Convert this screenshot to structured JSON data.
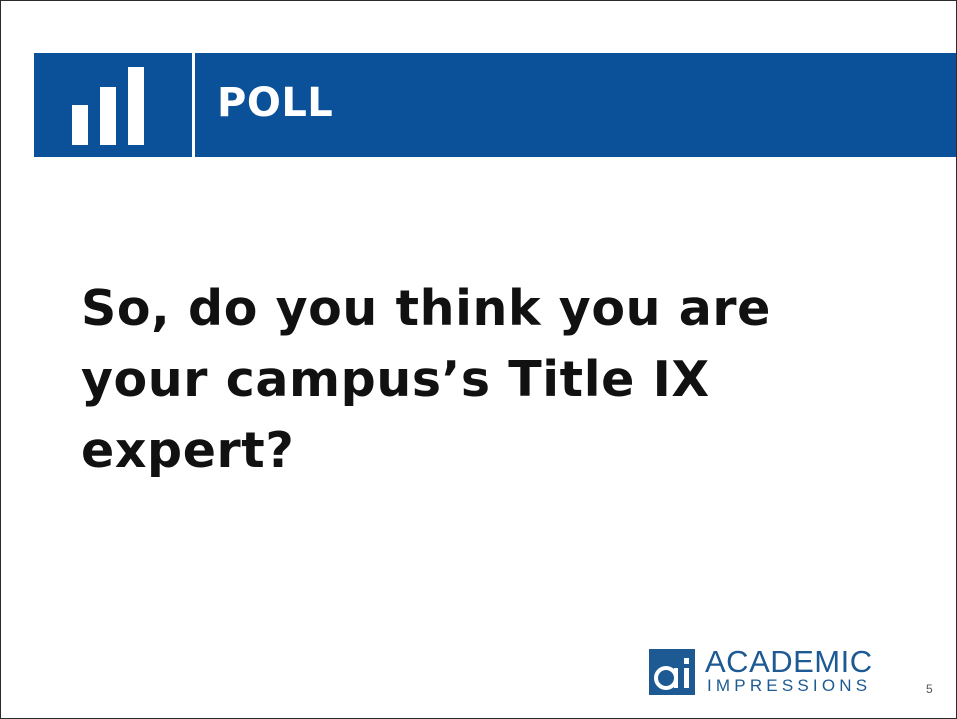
{
  "header": {
    "title": "POLL",
    "icon": "bar-chart-icon",
    "accent_color": "#0a5199"
  },
  "question": {
    "lines": [
      "So, do you think you are",
      "your campus’s Title IX",
      "expert?"
    ]
  },
  "logo": {
    "mark_letters": "ai",
    "name": "ACADEMIC",
    "subtitle": "IMPRESSIONS",
    "color": "#1d5a93"
  },
  "slide_number": "5"
}
